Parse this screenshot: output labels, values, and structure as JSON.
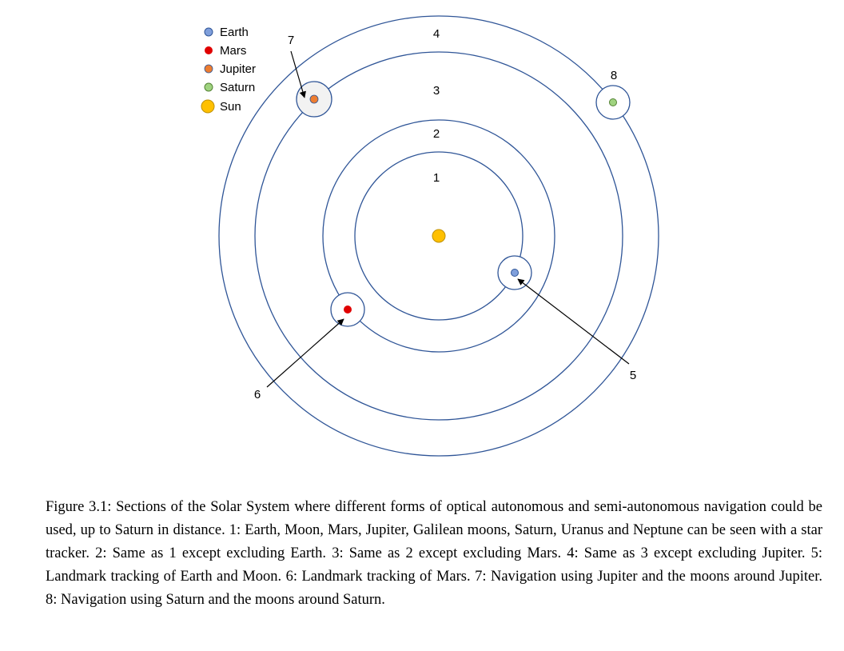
{
  "legend": {
    "items": [
      {
        "label": "Earth",
        "color": "#7f9fdb"
      },
      {
        "label": "Mars",
        "color": "#e00000"
      },
      {
        "label": "Jupiter",
        "color": "#ed7d31"
      },
      {
        "label": "Saturn",
        "color": "#9fd37f"
      },
      {
        "label": "Sun",
        "color": "#ffc000"
      }
    ]
  },
  "diagram": {
    "ring_color": "#2f5597",
    "region_labels": [
      "1",
      "2",
      "3",
      "4"
    ],
    "callouts": {
      "earth": "5",
      "mars": "6",
      "jupiter": "7",
      "saturn": "8"
    }
  },
  "caption": {
    "text": "Figure 3.1: Sections of the Solar System where different forms of optical autonomous and semi-autonomous navigation could be used, up to Saturn in distance. 1: Earth, Moon, Mars, Jupiter, Galilean moons, Saturn, Uranus and Neptune can be seen with a star tracker. 2: Same as 1 except excluding Earth. 3: Same as 2 except excluding Mars. 4: Same as 3 except excluding Jupiter. 5: Landmark tracking of Earth and Moon. 6: Landmark tracking of Mars. 7: Navigation using Jupiter and the moons around Jupiter. 8: Navigation using Saturn and the moons around Saturn."
  }
}
